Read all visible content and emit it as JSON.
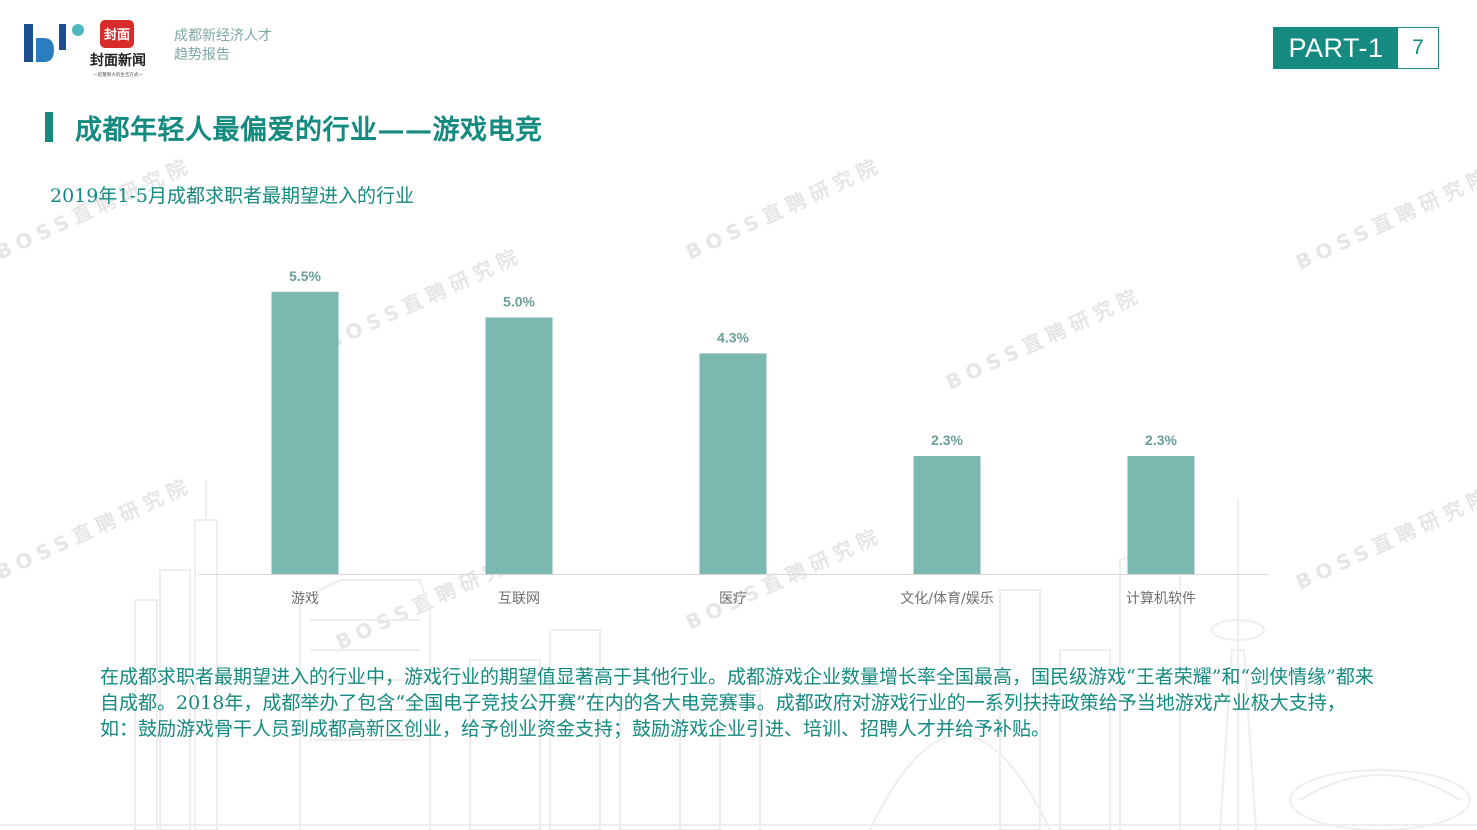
{
  "header": {
    "logo_text": "封面新闻",
    "logo_tagline": "一起警察大的生活方式一",
    "report_title_line1": "成都新经济人才",
    "report_title_line2": "趋势报告",
    "part_label": "PART-1",
    "page_number": "7"
  },
  "section": {
    "title": "成都年轻人最偏爱的行业——游戏电竞"
  },
  "watermark_text": "BOSS直聘研究院",
  "colors": {
    "accent": "#148a80",
    "bar": "#7ab8b0",
    "label": "#6a9e99"
  },
  "chart_data": {
    "type": "bar",
    "title": "2019年1-5月成都求职者最期望进入的行业",
    "categories": [
      "游戏",
      "互联网",
      "医疗",
      "文化/体育/娱乐",
      "计算机软件"
    ],
    "values": [
      5.5,
      5.0,
      4.3,
      2.3,
      2.3
    ],
    "data_labels": [
      "5.5%",
      "5.0%",
      "4.3%",
      "2.3%",
      "2.3%"
    ],
    "ylim": [
      0,
      6
    ],
    "grid": false,
    "legend": "none"
  },
  "description": "在成都求职者最期望进入的行业中，游戏行业的期望值显著高于其他行业。成都游戏企业数量增长率全国最高，国民级游戏“王者荣耀”和“剑侠情缘”都来自成都。2018年，成都举办了包含“全国电子竞技公开赛”在内的各大电竞赛事。成都政府对游戏行业的一系列扶持政策给予当地游戏产业极大支持，如：鼓励游戏骨干人员到成都高新区创业，给予创业资金支持；鼓励游戏企业引进、培训、招聘人才并给予补贴。"
}
